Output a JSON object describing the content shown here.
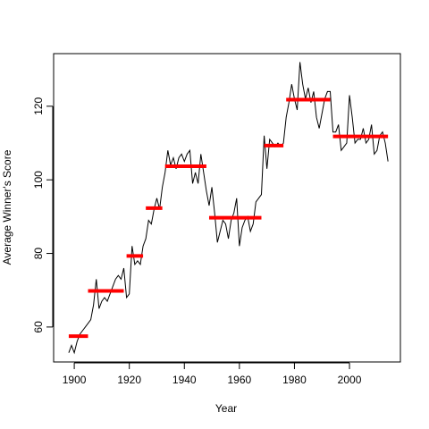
{
  "chart_data": {
    "type": "line",
    "xlabel": "Year",
    "ylabel": "Average Winner's Score",
    "x": [
      1898,
      1899,
      1900,
      1901,
      1902,
      1903,
      1904,
      1905,
      1906,
      1907,
      1908,
      1909,
      1910,
      1911,
      1912,
      1913,
      1914,
      1915,
      1916,
      1917,
      1918,
      1919,
      1920,
      1921,
      1922,
      1923,
      1924,
      1925,
      1926,
      1927,
      1928,
      1929,
      1930,
      1931,
      1932,
      1933,
      1934,
      1935,
      1936,
      1937,
      1938,
      1939,
      1940,
      1941,
      1942,
      1943,
      1944,
      1945,
      1946,
      1947,
      1948,
      1949,
      1950,
      1951,
      1952,
      1953,
      1954,
      1955,
      1956,
      1957,
      1958,
      1959,
      1960,
      1961,
      1962,
      1963,
      1964,
      1965,
      1966,
      1967,
      1968,
      1969,
      1970,
      1971,
      1972,
      1973,
      1974,
      1975,
      1976,
      1977,
      1978,
      1979,
      1980,
      1981,
      1982,
      1983,
      1984,
      1985,
      1986,
      1987,
      1988,
      1989,
      1990,
      1991,
      1992,
      1993,
      1994,
      1995,
      1996,
      1997,
      1998,
      1999,
      2000,
      2001,
      2002,
      2003,
      2004,
      2005,
      2006,
      2007,
      2008,
      2009,
      2010,
      2011,
      2012,
      2013,
      2014
    ],
    "values": [
      53,
      55,
      53,
      56,
      58,
      59,
      60,
      61,
      62,
      66,
      73,
      65,
      67,
      68,
      67,
      69,
      71,
      73,
      74,
      73,
      76,
      68,
      69,
      82,
      77,
      78,
      77,
      82,
      84,
      89,
      88,
      92,
      95,
      92,
      98,
      102,
      108,
      104,
      106,
      103,
      106,
      107,
      105,
      107,
      108,
      99,
      102,
      99,
      107,
      102,
      97,
      93,
      98,
      91,
      83,
      86,
      89,
      88,
      84,
      89,
      91,
      95,
      82,
      87,
      89,
      90,
      86,
      88,
      94,
      95,
      96,
      112,
      103,
      111,
      110,
      109,
      110,
      109,
      110,
      117,
      121,
      126,
      122,
      119,
      132,
      126,
      122,
      125,
      121,
      124,
      117,
      114,
      118,
      122,
      124,
      124,
      113,
      113,
      115,
      108,
      109,
      110,
      123,
      117,
      110,
      111,
      111,
      114,
      110,
      111,
      115,
      107,
      108,
      112,
      113,
      110,
      105
    ],
    "color": "#000000",
    "segments": [
      {
        "x0": 1898,
        "x1": 1905,
        "y": 57.5
      },
      {
        "x0": 1905,
        "x1": 1918,
        "y": 69.8
      },
      {
        "x0": 1919,
        "x1": 1925,
        "y": 79.3
      },
      {
        "x0": 1926,
        "x1": 1932,
        "y": 92.3
      },
      {
        "x0": 1933,
        "x1": 1948,
        "y": 103.7
      },
      {
        "x0": 1949,
        "x1": 1968,
        "y": 89.7
      },
      {
        "x0": 1969,
        "x1": 1976,
        "y": 109.3
      },
      {
        "x0": 1977,
        "x1": 1993,
        "y": 121.8
      },
      {
        "x0": 1994,
        "x1": 2014,
        "y": 111.8
      }
    ],
    "segment_color": "#ff0000",
    "xlim": [
      1892.5,
      2018.5
    ],
    "ylim": [
      50.5,
      134.3
    ],
    "xticks": [
      1900,
      1920,
      1940,
      1960,
      1980,
      2000
    ],
    "yticks": [
      60,
      80,
      100,
      120
    ]
  }
}
